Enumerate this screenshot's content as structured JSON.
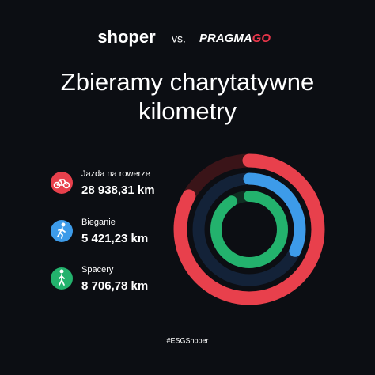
{
  "header": {
    "brand": "shoper",
    "separator": "vs.",
    "partner": "PRAGMA",
    "partner_suffix": "GO"
  },
  "title": {
    "lines": [
      "Zbieramy charytatywne",
      "kilometry"
    ]
  },
  "items": [
    {
      "label": "Jazda na rowerze",
      "value": "28 938,31 km"
    },
    {
      "label": "Bieganie",
      "value": "5 421,23 km"
    },
    {
      "label": "Spacery",
      "value": "8 706,78 km"
    }
  ],
  "footer": {
    "hashtag": "#ESGShoper"
  }
}
